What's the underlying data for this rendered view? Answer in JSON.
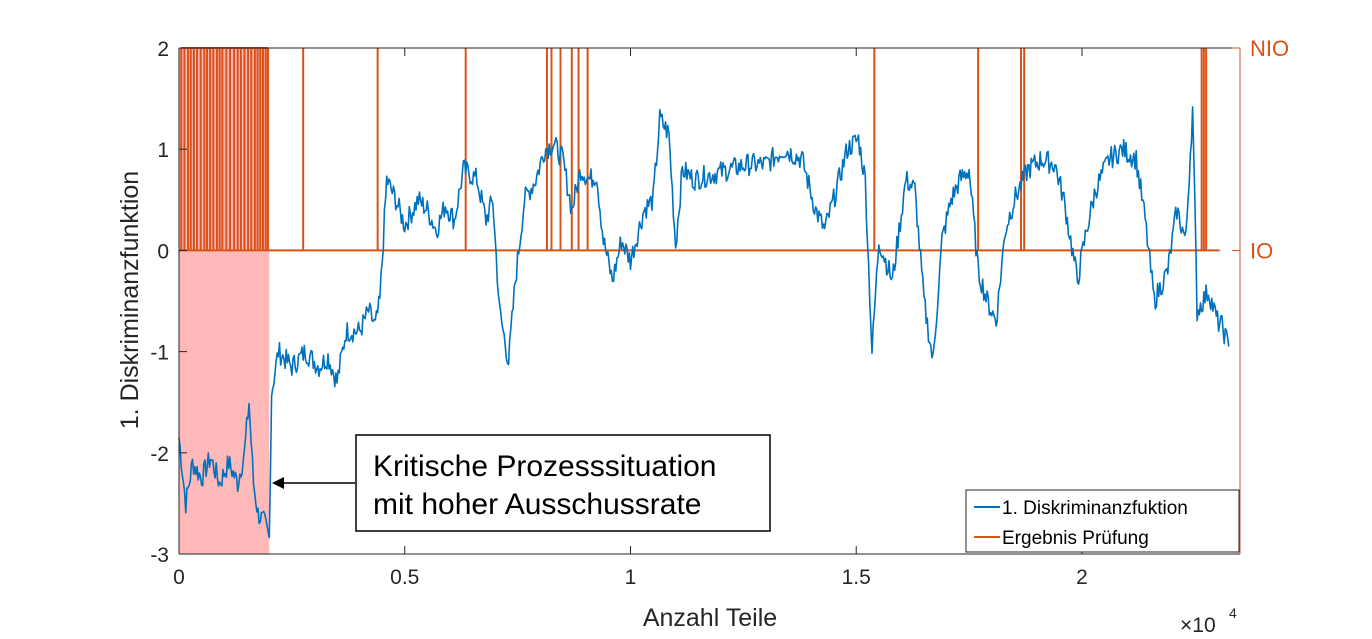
{
  "chart_data": {
    "type": "line",
    "xlabel": "Anzahl Teile",
    "x_exponent": "×10",
    "x_exponent_power": "4",
    "ylabel": "1. Diskriminanzfunktion",
    "xlim": [
      0,
      23500
    ],
    "ylim": [
      -3,
      2
    ],
    "x_ticks": [
      0,
      5000,
      10000,
      15000,
      20000
    ],
    "x_tick_labels": [
      "0",
      "0.5",
      "1",
      "1.5",
      "2"
    ],
    "y_ticks": [
      2,
      1,
      0,
      -1,
      -2,
      -3
    ],
    "y_tick_labels": [
      "2",
      "1",
      "0",
      "-1",
      "-2",
      "-3"
    ],
    "right_axis": {
      "labels": [
        "NIO",
        "IO"
      ],
      "values": [
        2,
        0
      ]
    },
    "legend_position": "bottom-right",
    "highlight_region": {
      "x_from": 0,
      "x_to": 2000,
      "color": "#ffb9b9"
    },
    "annotation": {
      "line1": "Kritische Prozesssituation",
      "line2": "mit hoher Ausschussrate",
      "arrow_target": {
        "x": 2000,
        "y": -2.3
      }
    },
    "colors": {
      "series1": "#0072bd",
      "series2": "#d95319",
      "axis": "#262626"
    },
    "series": [
      {
        "name": "1. Diskriminanzfuktion",
        "points": [
          [
            0,
            -1.85
          ],
          [
            150,
            -2.5
          ],
          [
            300,
            -2.1
          ],
          [
            500,
            -2.25
          ],
          [
            700,
            -2.05
          ],
          [
            900,
            -2.3
          ],
          [
            1100,
            -2.1
          ],
          [
            1300,
            -2.3
          ],
          [
            1450,
            -2.0
          ],
          [
            1550,
            -1.5
          ],
          [
            1650,
            -2.3
          ],
          [
            1750,
            -2.6
          ],
          [
            1900,
            -2.7
          ],
          [
            2000,
            -2.85
          ],
          [
            2050,
            -1.4
          ],
          [
            2200,
            -1.0
          ],
          [
            2500,
            -1.15
          ],
          [
            2800,
            -1.0
          ],
          [
            3100,
            -1.15
          ],
          [
            3300,
            -1.05
          ],
          [
            3500,
            -1.3
          ],
          [
            3700,
            -0.8
          ],
          [
            4000,
            -0.8
          ],
          [
            4200,
            -0.6
          ],
          [
            4350,
            -0.75
          ],
          [
            4450,
            -0.5
          ],
          [
            4600,
            0.7
          ],
          [
            4800,
            0.5
          ],
          [
            5000,
            0.25
          ],
          [
            5300,
            0.5
          ],
          [
            5500,
            0.4
          ],
          [
            5700,
            0.2
          ],
          [
            5900,
            0.45
          ],
          [
            6100,
            0.3
          ],
          [
            6300,
            0.8
          ],
          [
            6600,
            0.7
          ],
          [
            6800,
            0.3
          ],
          [
            6950,
            0.5
          ],
          [
            7100,
            -0.6
          ],
          [
            7300,
            -1.1
          ],
          [
            7450,
            -0.3
          ],
          [
            7650,
            0.5
          ],
          [
            7900,
            0.7
          ],
          [
            8100,
            1.0
          ],
          [
            8300,
            1.05
          ],
          [
            8500,
            0.9
          ],
          [
            8700,
            0.4
          ],
          [
            8900,
            0.8
          ],
          [
            9100,
            0.7
          ],
          [
            9250,
            0.75
          ],
          [
            9400,
            0.1
          ],
          [
            9600,
            -0.3
          ],
          [
            9800,
            0.1
          ],
          [
            10000,
            -0.1
          ],
          [
            10300,
            0.4
          ],
          [
            10500,
            0.5
          ],
          [
            10650,
            1.3
          ],
          [
            10850,
            1.15
          ],
          [
            11000,
            0.05
          ],
          [
            11150,
            0.8
          ],
          [
            11400,
            0.7
          ],
          [
            11800,
            0.75
          ],
          [
            12200,
            0.8
          ],
          [
            12600,
            0.85
          ],
          [
            13000,
            0.85
          ],
          [
            13400,
            1.0
          ],
          [
            13800,
            0.9
          ],
          [
            14100,
            0.4
          ],
          [
            14300,
            0.2
          ],
          [
            14500,
            0.5
          ],
          [
            14800,
            1.0
          ],
          [
            15050,
            1.1
          ],
          [
            15200,
            0.7
          ],
          [
            15350,
            -1.0
          ],
          [
            15500,
            0.1
          ],
          [
            15800,
            -0.3
          ],
          [
            16100,
            0.7
          ],
          [
            16300,
            0.6
          ],
          [
            16500,
            -0.5
          ],
          [
            16700,
            -1.1
          ],
          [
            16900,
            0.1
          ],
          [
            17100,
            0.5
          ],
          [
            17300,
            0.7
          ],
          [
            17500,
            0.8
          ],
          [
            17700,
            -0.2
          ],
          [
            17900,
            -0.5
          ],
          [
            18100,
            -0.7
          ],
          [
            18300,
            0.2
          ],
          [
            18500,
            0.5
          ],
          [
            18800,
            0.8
          ],
          [
            19100,
            0.9
          ],
          [
            19400,
            0.85
          ],
          [
            19600,
            0.5
          ],
          [
            19900,
            -0.3
          ],
          [
            20100,
            0.2
          ],
          [
            20300,
            0.6
          ],
          [
            20600,
            0.9
          ],
          [
            20900,
            1.0
          ],
          [
            21200,
            0.9
          ],
          [
            21400,
            0.3
          ],
          [
            21600,
            -0.5
          ],
          [
            21900,
            -0.2
          ],
          [
            22100,
            0.4
          ],
          [
            22300,
            0.1
          ],
          [
            22450,
            1.4
          ],
          [
            22550,
            -0.6
          ],
          [
            22800,
            -0.4
          ],
          [
            23000,
            -0.7
          ],
          [
            23100,
            -0.75
          ],
          [
            23250,
            -0.95
          ]
        ]
      },
      {
        "name": "Ergebnis Prüfung",
        "nio_x": [
          50,
          120,
          200,
          260,
          330,
          400,
          480,
          560,
          620,
          690,
          760,
          840,
          900,
          960,
          1050,
          1130,
          1220,
          1300,
          1370,
          1450,
          1530,
          1600,
          1680,
          1740,
          1800,
          1860,
          1920,
          1970,
          2750,
          4400,
          6350,
          8150,
          8250,
          8450,
          8700,
          8850,
          9050,
          15400,
          17700,
          18650,
          18720,
          22650,
          22700,
          22750
        ],
        "io_value": 0,
        "nio_value": 2
      }
    ]
  }
}
